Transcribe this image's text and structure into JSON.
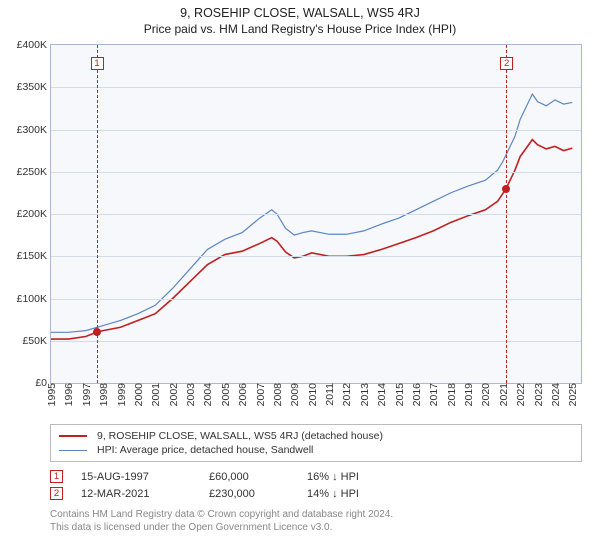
{
  "title": "9, ROSEHIP CLOSE, WALSALL, WS5 4RJ",
  "subtitle": "Price paid vs. HM Land Registry's House Price Index (HPI)",
  "chart": {
    "type": "line",
    "background_color": "#f6f8fb",
    "border_color": "#a9b8cf",
    "grid_color": "#d3dce9",
    "ylim": [
      0,
      400000
    ],
    "ytick_step": 50000,
    "yticks": [
      {
        "v": 0,
        "label": "£0"
      },
      {
        "v": 50000,
        "label": "£50K"
      },
      {
        "v": 100000,
        "label": "£100K"
      },
      {
        "v": 150000,
        "label": "£150K"
      },
      {
        "v": 200000,
        "label": "£200K"
      },
      {
        "v": 250000,
        "label": "£250K"
      },
      {
        "v": 300000,
        "label": "£300K"
      },
      {
        "v": 350000,
        "label": "£350K"
      },
      {
        "v": 400000,
        "label": "£400K"
      }
    ],
    "xlim": [
      1995,
      2025.5
    ],
    "xticks": [
      1995,
      1996,
      1997,
      1998,
      1999,
      2000,
      2001,
      2002,
      2003,
      2004,
      2005,
      2006,
      2007,
      2008,
      2009,
      2010,
      2011,
      2012,
      2013,
      2014,
      2015,
      2016,
      2017,
      2018,
      2019,
      2020,
      2021,
      2022,
      2023,
      2024,
      2025
    ],
    "series": [
      {
        "name": "property",
        "label": "9, ROSEHIP CLOSE, WALSALL, WS5 4RJ (detached house)",
        "color": "#c02020",
        "line_width": 1.6,
        "data": [
          [
            1995,
            52000
          ],
          [
            1996,
            52000
          ],
          [
            1997,
            55000
          ],
          [
            1997.62,
            60000
          ],
          [
            1998,
            62000
          ],
          [
            1999,
            66000
          ],
          [
            2000,
            74000
          ],
          [
            2001,
            82000
          ],
          [
            2002,
            100000
          ],
          [
            2003,
            120000
          ],
          [
            2004,
            140000
          ],
          [
            2005,
            152000
          ],
          [
            2006,
            156000
          ],
          [
            2007,
            165000
          ],
          [
            2007.7,
            172000
          ],
          [
            2008,
            168000
          ],
          [
            2008.5,
            155000
          ],
          [
            2009,
            148000
          ],
          [
            2009.5,
            150000
          ],
          [
            2010,
            154000
          ],
          [
            2011,
            150000
          ],
          [
            2012,
            150000
          ],
          [
            2013,
            152000
          ],
          [
            2014,
            158000
          ],
          [
            2015,
            165000
          ],
          [
            2016,
            172000
          ],
          [
            2017,
            180000
          ],
          [
            2018,
            190000
          ],
          [
            2019,
            198000
          ],
          [
            2020,
            205000
          ],
          [
            2020.7,
            215000
          ],
          [
            2021.19,
            230000
          ],
          [
            2021.7,
            252000
          ],
          [
            2022,
            268000
          ],
          [
            2022.7,
            288000
          ],
          [
            2023,
            282000
          ],
          [
            2023.5,
            277000
          ],
          [
            2024,
            280000
          ],
          [
            2024.5,
            275000
          ],
          [
            2025,
            278000
          ]
        ]
      },
      {
        "name": "hpi",
        "label": "HPI: Average price, detached house, Sandwell",
        "color": "#5b86c4",
        "line_width": 1.2,
        "data": [
          [
            1995,
            60000
          ],
          [
            1996,
            60000
          ],
          [
            1997,
            62000
          ],
          [
            1998,
            68000
          ],
          [
            1999,
            74000
          ],
          [
            2000,
            82000
          ],
          [
            2001,
            92000
          ],
          [
            2002,
            112000
          ],
          [
            2003,
            135000
          ],
          [
            2004,
            158000
          ],
          [
            2005,
            170000
          ],
          [
            2006,
            178000
          ],
          [
            2007,
            195000
          ],
          [
            2007.7,
            205000
          ],
          [
            2008,
            200000
          ],
          [
            2008.5,
            183000
          ],
          [
            2009,
            175000
          ],
          [
            2009.5,
            178000
          ],
          [
            2010,
            180000
          ],
          [
            2011,
            176000
          ],
          [
            2012,
            176000
          ],
          [
            2013,
            180000
          ],
          [
            2014,
            188000
          ],
          [
            2015,
            195000
          ],
          [
            2016,
            205000
          ],
          [
            2017,
            215000
          ],
          [
            2018,
            225000
          ],
          [
            2019,
            233000
          ],
          [
            2020,
            240000
          ],
          [
            2020.7,
            252000
          ],
          [
            2021,
            262000
          ],
          [
            2021.7,
            292000
          ],
          [
            2022,
            312000
          ],
          [
            2022.7,
            342000
          ],
          [
            2023,
            333000
          ],
          [
            2023.5,
            328000
          ],
          [
            2024,
            335000
          ],
          [
            2024.5,
            330000
          ],
          [
            2025,
            332000
          ]
        ]
      }
    ],
    "sale_markers": [
      {
        "idx": "1",
        "x": 1997.62,
        "y": 60000
      },
      {
        "idx": "2",
        "x": 2021.19,
        "y": 230000
      }
    ],
    "vline_color": "#c02020"
  },
  "legend": {
    "items": [
      {
        "color": "#c02020",
        "width": 2,
        "label": "9, ROSEHIP CLOSE, WALSALL, WS5 4RJ (detached house)"
      },
      {
        "color": "#5b86c4",
        "width": 1.4,
        "label": "HPI: Average price, detached house, Sandwell"
      }
    ]
  },
  "footnotes": [
    {
      "idx": "1",
      "date": "15-AUG-1997",
      "price": "£60,000",
      "delta": "16% ↓ HPI"
    },
    {
      "idx": "2",
      "date": "12-MAR-2021",
      "price": "£230,000",
      "delta": "14% ↓ HPI"
    }
  ],
  "credit_line1": "Contains HM Land Registry data © Crown copyright and database right 2024.",
  "credit_line2": "This data is licensed under the Open Government Licence v3.0."
}
